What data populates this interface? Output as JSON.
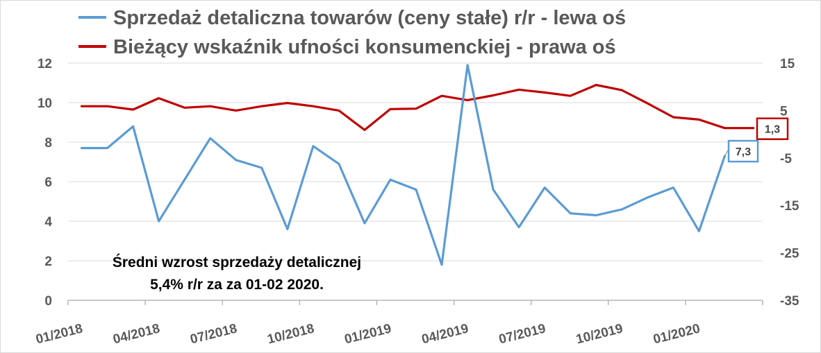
{
  "chart_data": {
    "type": "line",
    "x": [
      "01/2018",
      "02/2018",
      "03/2018",
      "04/2018",
      "05/2018",
      "06/2018",
      "07/2018",
      "08/2018",
      "09/2018",
      "10/2018",
      "11/2018",
      "12/2018",
      "01/2019",
      "02/2019",
      "03/2019",
      "04/2019",
      "05/2019",
      "06/2019",
      "07/2019",
      "08/2019",
      "09/2019",
      "10/2019",
      "11/2019",
      "12/2019",
      "01/2020",
      "02/2020"
    ],
    "x_tick_labels": [
      "01/2018",
      "04/2018",
      "07/2018",
      "10/2018",
      "01/2019",
      "04/2019",
      "07/2019",
      "10/2019",
      "01/2020"
    ],
    "series": [
      {
        "name": "Sprzedaż detaliczna towarów (ceny stałe) r/r - lewa oś",
        "axis": "left",
        "color": "#5b9bd5",
        "values": [
          7.7,
          7.7,
          8.8,
          4.0,
          6.1,
          8.2,
          7.1,
          6.7,
          3.6,
          7.8,
          6.9,
          3.9,
          6.1,
          5.6,
          1.8,
          11.9,
          5.6,
          3.7,
          5.7,
          4.4,
          4.3,
          4.6,
          5.2,
          5.7,
          3.5,
          7.3
        ]
      },
      {
        "name": "Bieżący wskaźnik ufności konsumenckiej - prawa oś",
        "axis": "right",
        "color": "#c00000",
        "values": [
          5.9,
          5.9,
          5.2,
          7.6,
          5.6,
          5.9,
          5.0,
          5.9,
          6.6,
          5.9,
          5.0,
          0.9,
          5.3,
          5.4,
          8.1,
          7.2,
          8.2,
          9.4,
          8.8,
          8.1,
          10.4,
          9.3,
          6.5,
          3.6,
          3.1,
          1.3
        ]
      }
    ],
    "y_left": {
      "ylim": [
        0,
        12
      ],
      "ticks": [
        "0",
        "2",
        "4",
        "6",
        "8",
        "10",
        "12"
      ]
    },
    "y_right": {
      "ylim": [
        -35,
        15
      ],
      "ticks": [
        "-35",
        "-25",
        "-15",
        "-5",
        "5",
        "15"
      ]
    },
    "legend_position": "top",
    "grid": "horizontal",
    "grid_color": "#d9d9d9",
    "callouts": [
      {
        "series": 0,
        "label": "7,3",
        "border_color": "#5b9bd5"
      },
      {
        "series": 1,
        "label": "1,3",
        "border_color": "#c00000"
      }
    ],
    "annotation": {
      "line1": "Średni wzrost sprzedaży detalicznej",
      "line2": "5,4% r/r za za 01-02 2020."
    }
  }
}
